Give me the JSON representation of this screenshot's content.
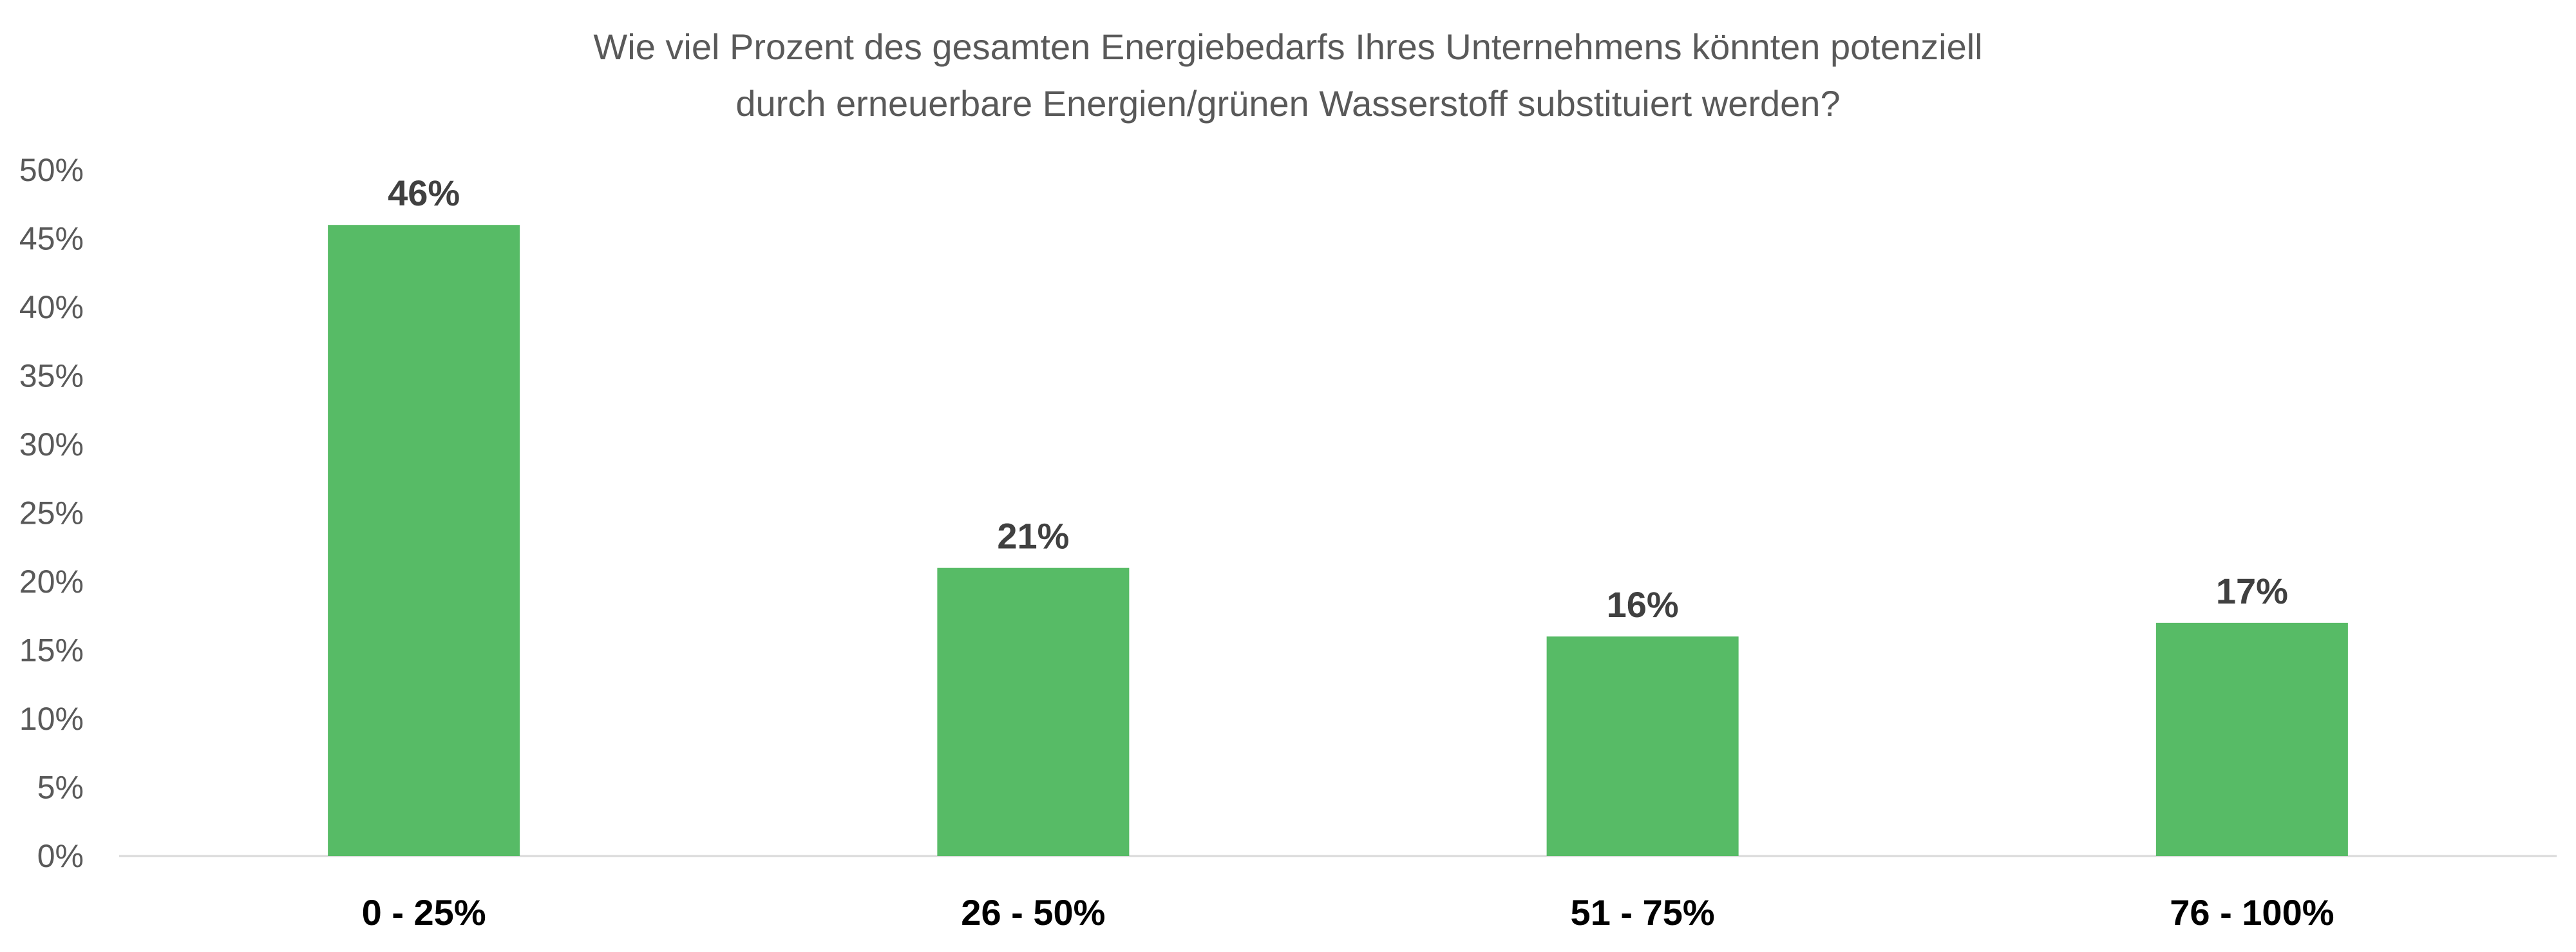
{
  "chart_data": {
    "type": "bar",
    "title_lines": [
      "Wie viel Prozent des gesamten Energiebedarfs Ihres Unternehmens könnten potenziell",
      "durch erneuerbare Energien/grünen Wasserstoff substituiert werden?"
    ],
    "categories": [
      "0 - 25%",
      "26 - 50%",
      "51 - 75%",
      "76 - 100%"
    ],
    "values": [
      46,
      21,
      16,
      17
    ],
    "data_labels": [
      "46%",
      "21%",
      "16%",
      "17%"
    ],
    "ylim": [
      0,
      50
    ],
    "yticks": [
      0,
      5,
      10,
      15,
      20,
      25,
      30,
      35,
      40,
      45,
      50
    ],
    "ytick_labels": [
      "0%",
      "5%",
      "10%",
      "15%",
      "20%",
      "25%",
      "30%",
      "35%",
      "40%",
      "45%",
      "50%"
    ],
    "grid": false,
    "legend": "none",
    "colors": {
      "bar": "#57BB66",
      "axis": "#D9D9D9"
    }
  }
}
